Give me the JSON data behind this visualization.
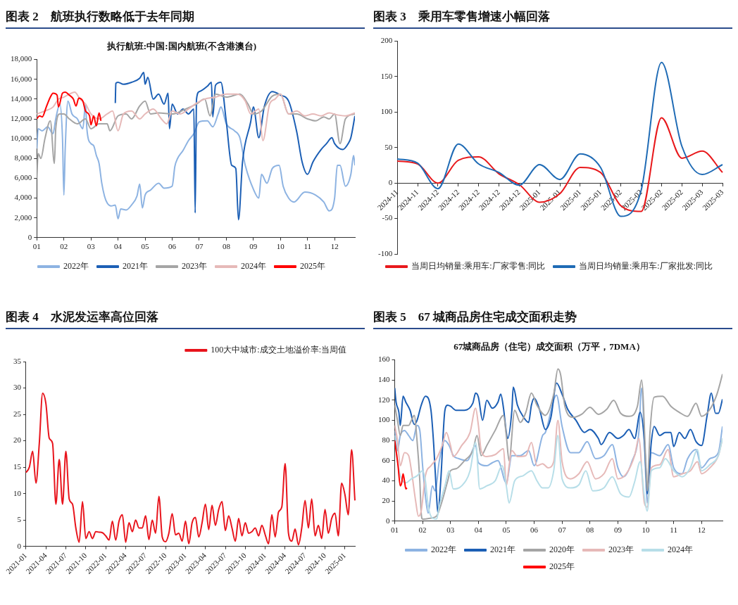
{
  "chart_data": [
    {
      "type": "line",
      "title": "图表 2　航班执行数略低于去年同期",
      "subtitle": "执行航班:中国:国内航班(不含港澳台)",
      "xlim": [
        1,
        12.75
      ],
      "xticks": [
        {
          "value": 1,
          "label": "01"
        },
        {
          "value": 2,
          "label": "02"
        },
        {
          "value": 3,
          "label": "03"
        },
        {
          "value": 4,
          "label": "04"
        },
        {
          "value": 5,
          "label": "05"
        },
        {
          "value": 6,
          "label": "06"
        },
        {
          "value": 7,
          "label": "07"
        },
        {
          "value": 8,
          "label": "08"
        },
        {
          "value": 9,
          "label": "09"
        },
        {
          "value": 10,
          "label": "10"
        },
        {
          "value": 11,
          "label": "11"
        },
        {
          "value": 12,
          "label": "12"
        }
      ],
      "ylim": [
        0,
        18000
      ],
      "yticks": [
        0,
        {
          "value": 2000,
          "label": "2,000"
        },
        {
          "value": 4000,
          "label": "4,000"
        },
        {
          "value": 6000,
          "label": "6,000"
        },
        {
          "value": 8000,
          "label": "8,000"
        },
        {
          "value": 10000,
          "label": "10,000"
        },
        {
          "value": 12000,
          "label": "12,000"
        },
        {
          "value": 14000,
          "label": "14,000"
        },
        {
          "value": 16000,
          "label": "16,000"
        },
        {
          "value": 18000,
          "label": "18,000"
        }
      ],
      "grid": false,
      "legend": "bottom",
      "marker": "none",
      "series": [
        {
          "name": "2022年",
          "color": "#8db3e2",
          "x": [
            1,
            1.05,
            1.2,
            1.4,
            1.6,
            1.7,
            1.85,
            1.95,
            2,
            2.05,
            2.15,
            2.3,
            2.5,
            2.7,
            2.8,
            2.85,
            3,
            3.1,
            3.2,
            3.3,
            3.4,
            3.5,
            3.6,
            3.75,
            3.9,
            4,
            4.1,
            4.3,
            4.5,
            4.7,
            4.8,
            4.9,
            5,
            5.2,
            5.5,
            5.7,
            6,
            6.1,
            6.2,
            6.4,
            6.6,
            6.8,
            7,
            7.3,
            7.5,
            7.7,
            7.8,
            8,
            8.3,
            8.5,
            8.7,
            9,
            9.2,
            9.3,
            9.5,
            9.7,
            9.95,
            10.1,
            10.3,
            10.5,
            10.9,
            11.3,
            11.6,
            11.8,
            12,
            12.1,
            12.2,
            12.4,
            12.6,
            12.7,
            12.75
          ],
          "values": [
            9000,
            11000,
            10800,
            11200,
            10500,
            12000,
            13500,
            10000,
            4300,
            9000,
            13800,
            12500,
            12000,
            11000,
            13500,
            11000,
            9500,
            9300,
            8300,
            7500,
            5500,
            4200,
            3500,
            3200,
            3300,
            1900,
            2900,
            2800,
            3300,
            4200,
            5400,
            3000,
            4300,
            4800,
            5500,
            5000,
            5200,
            7200,
            8000,
            8800,
            9800,
            10500,
            11700,
            11800,
            11200,
            12500,
            13200,
            11500,
            10800,
            10100,
            7300,
            4900,
            4000,
            6400,
            5500,
            7000,
            7300,
            5200,
            4000,
            3600,
            4600,
            4300,
            3600,
            2700,
            4000,
            7300,
            7300,
            5200,
            6400,
            8300,
            7300
          ]
        },
        {
          "name": "2021年",
          "color": "#1c5fb5",
          "x": [
            3.9,
            3.92,
            4,
            4.2,
            4.5,
            4.8,
            4.95,
            5,
            5.1,
            5.3,
            5.5,
            5.7,
            5.85,
            5.9,
            6,
            6.2,
            6.4,
            6.6,
            6.8,
            6.85,
            6.9,
            7,
            7.3,
            7.45,
            7.5,
            7.6,
            7.8,
            8,
            8.2,
            8.35,
            8.45,
            8.6,
            8.9,
            9,
            9.2,
            9.4,
            9.7,
            10,
            10.3,
            10.6,
            10.8,
            11,
            11.2,
            11.5,
            11.7,
            11.9,
            12,
            12.3,
            12.5,
            12.6,
            12.75
          ],
          "values": [
            13600,
            15600,
            15700,
            15500,
            15700,
            16100,
            16700,
            15500,
            16200,
            14000,
            14500,
            13500,
            14600,
            11000,
            13500,
            12500,
            13000,
            12500,
            13000,
            2500,
            14000,
            14750,
            15300,
            15700,
            12200,
            15400,
            15700,
            11700,
            7300,
            7000,
            1800,
            7700,
            11700,
            13200,
            10100,
            13200,
            14750,
            14400,
            13800,
            10700,
            7650,
            6400,
            7650,
            8900,
            9500,
            10100,
            9500,
            8900,
            9500,
            10100,
            12300
          ]
        },
        {
          "name": "2023年",
          "color": "#a5a5a5",
          "x": [
            1,
            1.05,
            1.15,
            1.3,
            1.5,
            1.65,
            1.7,
            1.85,
            2,
            2.2,
            2.5,
            2.8,
            3,
            3.3,
            3.6,
            3.7,
            4,
            4.3,
            4.5,
            4.8,
            5,
            5.2,
            5.5,
            6,
            6.5,
            6.9,
            7.2,
            7.4,
            7.6,
            8,
            8.5,
            8.8,
            9,
            9.3,
            9.7,
            10,
            10.3,
            10.6,
            11,
            11.3,
            11.6,
            11.8,
            12,
            12.2,
            12.4,
            12.75
          ],
          "values": [
            6000,
            8500,
            8000,
            10000,
            11800,
            7500,
            11000,
            12500,
            12500,
            12000,
            11500,
            12000,
            11000,
            11500,
            11500,
            10800,
            12300,
            12500,
            12000,
            13300,
            13800,
            12500,
            12600,
            12500,
            13000,
            13500,
            14000,
            12300,
            14500,
            14200,
            14500,
            13500,
            12500,
            12800,
            14300,
            14500,
            12500,
            12500,
            12000,
            11800,
            12200,
            12000,
            12500,
            9500,
            12000,
            12500
          ]
        },
        {
          "name": "2024年",
          "color": "#e6b9b8",
          "x": [
            1,
            1.3,
            1.6,
            1.8,
            2,
            2.2,
            2.4,
            2.6,
            2.8,
            3,
            3.3,
            3.6,
            3.8,
            4,
            4.2,
            4.5,
            4.8,
            5,
            5.3,
            5.6,
            5.8,
            6,
            6.3,
            6.6,
            6.9,
            7.2,
            7.6,
            8,
            8.4,
            8.7,
            8.9,
            9.2,
            9.35,
            9.6,
            9.8,
            10,
            10.3,
            10.6,
            10.9,
            11.2,
            11.5,
            11.8,
            12.1,
            12.4,
            12.75
          ],
          "values": [
            12500,
            12800,
            13200,
            14000,
            14200,
            14500,
            14700,
            14000,
            13500,
            12500,
            12000,
            12500,
            12800,
            10800,
            12500,
            12800,
            12000,
            12500,
            13000,
            12000,
            11500,
            12800,
            12500,
            13000,
            13600,
            14000,
            14200,
            14500,
            14500,
            13800,
            12500,
            13000,
            9800,
            13500,
            14000,
            14500,
            12500,
            12800,
            12300,
            12500,
            12300,
            12600,
            12400,
            12300,
            12600
          ]
        },
        {
          "name": "2025年",
          "color": "#ff0000",
          "x": [
            1,
            1.1,
            1.2,
            1.35,
            1.5,
            1.6,
            1.75,
            1.8,
            1.95,
            2.05,
            2.2,
            2.35,
            2.45,
            2.55,
            2.7,
            2.8,
            2.95,
            3,
            3.1,
            3.2,
            3.3,
            3.37
          ],
          "values": [
            12000,
            12300,
            12200,
            13200,
            14200,
            14600,
            14400,
            13200,
            14600,
            14700,
            14400,
            14000,
            13300,
            14100,
            13800,
            12800,
            12300,
            11400,
            12300,
            11300,
            12600,
            11800
          ]
        }
      ]
    },
    {
      "type": "line",
      "title": "图表 3　乘用车零售增速小幅回落",
      "categories": [
        "2024-11",
        "2024-11",
        "2024-12",
        "2024-12",
        "2024-12",
        "2024-12",
        "2024-12",
        "2025-01",
        "2025-01",
        "2025-01",
        "2025-01",
        "2025-02",
        "2025-02",
        "2025-02",
        "2025-02",
        "2025-03",
        "2025-03"
      ],
      "ylim": [
        -100,
        200
      ],
      "yticks": [
        -100,
        -50,
        0,
        50,
        100,
        150,
        200
      ],
      "grid": false,
      "legend": "bottom",
      "marker": "none",
      "series": [
        {
          "name": "当周日均销量:乘用车:厂家零售:同比",
          "color": "#e8191c",
          "values": [
            31,
            27,
            0,
            32,
            37,
            13,
            -2,
            -27,
            -15,
            22,
            15,
            -32,
            -40,
            92,
            35,
            45,
            15
          ]
        },
        {
          "name": "当周日均销量:乘用车:厂家批发:同比",
          "color": "#1f6bb5",
          "values": [
            34,
            28,
            -8,
            55,
            27,
            15,
            -3,
            26,
            5,
            41,
            22,
            -47,
            -10,
            170,
            52,
            12,
            26
          ]
        }
      ]
    },
    {
      "type": "line",
      "title": "图表 4　水泥发运率高位回落",
      "categories": [
        "2021-01",
        null,
        null,
        null,
        null,
        null,
        "2021-04",
        null,
        null,
        null,
        null,
        null,
        "2021-07",
        null,
        null,
        null,
        null,
        null,
        "2021-10",
        null,
        null,
        null,
        null,
        null,
        "2022-01",
        null,
        null,
        null,
        null,
        null,
        "2022-04",
        null,
        null,
        null,
        null,
        null,
        "2022-07",
        null,
        null,
        null,
        null,
        null,
        "2022-10",
        null,
        null,
        null,
        null,
        null,
        "2023-01",
        null,
        null,
        null,
        null,
        null,
        "2023-04",
        null,
        null,
        null,
        null,
        null,
        "2023-07",
        null,
        null,
        null,
        null,
        null,
        "2023-10",
        null,
        null,
        null,
        null,
        null,
        "2024-01",
        null,
        null,
        null,
        null,
        null,
        "2024-04",
        null,
        null,
        null,
        null,
        null,
        "2024-07",
        null,
        null,
        null,
        null,
        null,
        "2024-10",
        null,
        null,
        null,
        null,
        null,
        "2025-01",
        null,
        null,
        null
      ],
      "ylim": [
        0,
        35
      ],
      "yticks": [
        0,
        5,
        10,
        15,
        20,
        25,
        30,
        35
      ],
      "grid": false,
      "legend": "top right",
      "marker": "none",
      "series": [
        {
          "name": "100大中城市:成交土地溢价率:当周值",
          "color": "#e8141c",
          "values": [
            14,
            15,
            18,
            12,
            19.5,
            29,
            27,
            20.5,
            19.5,
            8,
            16.5,
            8,
            18,
            9,
            8,
            3.5,
            0.8,
            8.5,
            1.5,
            2.8,
            1.5,
            2.8,
            2.7,
            2.6,
            2,
            1.2,
            4.8,
            1.2,
            4.8,
            6,
            0.8,
            4.5,
            2.8,
            5,
            3.5,
            3.5,
            5.8,
            1.3,
            5,
            2.5,
            9.5,
            1.8,
            0.9,
            2.5,
            6.2,
            2.2,
            2.5,
            1,
            4.8,
            0.5,
            4.5,
            5.5,
            1.8,
            4.5,
            8,
            3.2,
            7.8,
            4,
            7,
            8.5,
            3,
            5.8,
            3.5,
            1,
            5.3,
            2,
            4.5,
            2.5,
            2.8,
            3.5,
            2,
            4,
            2.2,
            0.5,
            6,
            1.8,
            6.5,
            7.5,
            15.7,
            2.5,
            1,
            3.3,
            0.3,
            3.5,
            8.7,
            3.5,
            9,
            2,
            4,
            1.5,
            7,
            2.5,
            5.3,
            6.3,
            2,
            12,
            9.8,
            6,
            18.3,
            8.7
          ]
        }
      ]
    },
    {
      "type": "line",
      "title": "图表 5　67 城商品房住宅成交面积走势",
      "subtitle": "67城商品房（住宅）成交面积（万平，7DMA）",
      "xlim": [
        1,
        12.75
      ],
      "xticks": [
        {
          "value": 1,
          "label": "01"
        },
        {
          "value": 2,
          "label": "02"
        },
        {
          "value": 3,
          "label": "03"
        },
        {
          "value": 4,
          "label": "04"
        },
        {
          "value": 5,
          "label": "05"
        },
        {
          "value": 6,
          "label": "06"
        },
        {
          "value": 7,
          "label": "07"
        },
        {
          "value": 8,
          "label": "08"
        },
        {
          "value": 9,
          "label": "09"
        },
        {
          "value": 10,
          "label": "10"
        },
        {
          "value": 11,
          "label": "11"
        },
        {
          "value": 12,
          "label": "12"
        }
      ],
      "ylim": [
        0,
        160
      ],
      "yticks": [
        0,
        20,
        40,
        60,
        80,
        100,
        120,
        140,
        160
      ],
      "grid": false,
      "legend": "bottom",
      "marker": "none",
      "series": [
        {
          "name": "2022年",
          "color": "#8db3e2",
          "x": [
            1,
            1.1,
            1.2,
            1.35,
            1.5,
            1.65,
            1.8,
            1.9,
            2,
            2.1,
            2.2,
            2.35,
            2.45,
            2.6,
            2.8,
            2.95,
            3.1,
            3.3,
            3.6,
            3.9,
            4,
            4.3,
            4.5,
            4.7,
            5,
            5.2,
            5.5,
            5.8,
            6,
            6.3,
            6.4,
            6.8,
            7,
            7.3,
            7.6,
            7.9,
            8.2,
            8.5,
            8.8,
            9,
            9.2,
            9.5,
            9.75,
            9.85,
            10,
            10.05,
            10.2,
            10.5,
            10.8,
            11,
            11.3,
            11.5,
            11.8,
            12,
            12.3,
            12.6,
            12.75
          ],
          "values": [
            90,
            70,
            85,
            90,
            85,
            80,
            95,
            90,
            55,
            25,
            8,
            35,
            30,
            60,
            80,
            75,
            65,
            62,
            60,
            75,
            58,
            55,
            58,
            60,
            38,
            65,
            65,
            70,
            55,
            85,
            88,
            125,
            94,
            68,
            68,
            79,
            62,
            65,
            76,
            53,
            44,
            59,
            88,
            132,
            44,
            18,
            68,
            65,
            76,
            53,
            47,
            62,
            71,
            53,
            62,
            68,
            94
          ]
        },
        {
          "name": "2021年",
          "color": "#1c5fb5",
          "x": [
            1,
            1.05,
            1.15,
            1.2,
            1.3,
            1.4,
            1.55,
            1.7,
            1.8,
            1.95,
            2.1,
            2.3,
            2.4,
            2.5,
            2.55,
            2.65,
            2.8,
            2.9,
            3,
            3.2,
            3.5,
            3.8,
            3.9,
            4,
            4.15,
            4.3,
            4.5,
            4.7,
            4.8,
            4.9,
            5,
            5.05,
            5.2,
            5.25,
            5.4,
            5.6,
            5.8,
            5.9,
            6,
            6.2,
            6.4,
            6.6,
            6.8,
            7,
            7.2,
            7.5,
            7.8,
            8,
            8.3,
            8.4,
            8.7,
            9,
            9.2,
            9.4,
            9.6,
            9.8,
            9.95,
            10,
            10.05,
            10.2,
            10.3,
            10.5,
            10.7,
            10.9,
            11,
            11.2,
            11.4,
            11.6,
            11.8,
            12,
            12.2,
            12.35,
            12.5,
            12.6,
            12.75
          ],
          "values": [
            132,
            118,
            108,
            95,
            124,
            118,
            110,
            96,
            100,
            115,
            124,
            110,
            75,
            25,
            8,
            40,
            110,
            115,
            114,
            110,
            110,
            117,
            127,
            123,
            100,
            120,
            112,
            118,
            126,
            112,
            88,
            82,
            110,
            133,
            115,
            104,
            98,
            115,
            122,
            110,
            91,
            103,
            137,
            126,
            111,
            100,
            88,
            91,
            82,
            76,
            88,
            82,
            85,
            91,
            82,
            108,
            79,
            53,
            27,
            79,
            94,
            85,
            88,
            88,
            74,
            88,
            82,
            91,
            79,
            75,
            105,
            127,
            107,
            107,
            121
          ]
        },
        {
          "name": "2020年",
          "color": "#a5a5a5",
          "x": [
            1,
            1.1,
            1.2,
            1.3,
            1.5,
            1.6,
            1.7,
            1.8,
            1.9,
            1.95,
            2,
            2.3,
            2.5,
            2.7,
            2.9,
            3,
            3.2,
            3.5,
            3.8,
            3.95,
            4.1,
            4.3,
            4.6,
            4.9,
            5,
            5.1,
            5.3,
            5.5,
            5.7,
            5.9,
            6.1,
            6.4,
            6.7,
            6.85,
            6.95,
            7.1,
            7.4,
            7.7,
            8,
            8.3,
            8.6,
            8.85,
            9.1,
            9.4,
            9.7,
            9.85,
            10,
            10.05,
            10.15,
            10.3,
            10.6,
            10.9,
            11.2,
            11.5,
            11.8,
            12,
            12.3,
            12.55,
            12.75
          ],
          "values": [
            115,
            100,
            85,
            95,
            95,
            100,
            105,
            80,
            40,
            8,
            2,
            3,
            5,
            20,
            40,
            50,
            52,
            60,
            70,
            85,
            65,
            75,
            90,
            105,
            85,
            60,
            110,
            98,
            108,
            127,
            115,
            105,
            126,
            151,
            145,
            114,
            103,
            106,
            113,
            106,
            111,
            120,
            107,
            104,
            114,
            140,
            59,
            30,
            88,
            123,
            124,
            114,
            108,
            104,
            117,
            104,
            111,
            126,
            146
          ]
        },
        {
          "name": "2023年",
          "color": "#e6b9b8",
          "x": [
            1,
            1.1,
            1.2,
            1.35,
            1.5,
            1.6,
            1.75,
            1.85,
            1.95,
            2.1,
            2.3,
            2.5,
            2.7,
            2.85,
            3,
            3.1,
            3.4,
            3.7,
            3.9,
            4,
            4.1,
            4.3,
            4.6,
            4.9,
            5,
            5.1,
            5.2,
            5.4,
            5.7,
            5.9,
            6.1,
            6.3,
            6.5,
            6.7,
            6.85,
            7,
            7.3,
            7.6,
            7.9,
            8.2,
            8.5,
            8.8,
            9,
            9.3,
            9.6,
            9.75,
            9.95,
            10.05,
            10.2,
            10.5,
            10.8,
            11,
            11.3,
            11.6,
            11.85,
            12,
            12.3,
            12.6,
            12.75
          ],
          "values": [
            95,
            80,
            55,
            68,
            65,
            50,
            20,
            5,
            10,
            45,
            55,
            62,
            75,
            88,
            75,
            64,
            75,
            88,
            112,
            95,
            70,
            64,
            66,
            72,
            35,
            55,
            70,
            64,
            65,
            78,
            55,
            57,
            53,
            59,
            100,
            59,
            42,
            47,
            59,
            42,
            47,
            62,
            42,
            47,
            65,
            82,
            18,
            14,
            53,
            56,
            71,
            44,
            47,
            50,
            59,
            47,
            53,
            65,
            82
          ]
        },
        {
          "name": "2024年",
          "color": "#b7dee8",
          "x": [
            1,
            1.1,
            1.2,
            1.4,
            1.6,
            1.8,
            2,
            2.1,
            2.2,
            2.35,
            2.5,
            2.6,
            2.8,
            2.95,
            3.1,
            3.4,
            3.7,
            3.9,
            4.05,
            4.3,
            4.6,
            4.85,
            5,
            5.1,
            5.3,
            5.6,
            5.9,
            6.1,
            6.3,
            6.5,
            6.7,
            6.85,
            7,
            7.3,
            7.6,
            7.85,
            8.1,
            8.5,
            8.8,
            9.1,
            9.4,
            9.6,
            9.8,
            9.95,
            10.05,
            10.2,
            10.5,
            10.7,
            11,
            11.3,
            11.6,
            11.85,
            12,
            12.3,
            12.6,
            12.75
          ],
          "values": [
            85,
            60,
            45,
            38,
            42,
            45,
            50,
            40,
            15,
            3,
            2,
            15,
            35,
            50,
            32,
            35,
            50,
            78,
            32,
            35,
            40,
            55,
            35,
            18,
            40,
            45,
            50,
            40,
            33,
            33,
            50,
            85,
            42,
            33,
            36,
            50,
            30,
            33,
            44,
            27,
            24,
            39,
            59,
            24,
            10,
            50,
            53,
            62,
            50,
            44,
            53,
            71,
            50,
            56,
            65,
            82
          ]
        },
        {
          "name": "2025年",
          "color": "#ff0000",
          "x": [
            1,
            1.05,
            1.12,
            1.2,
            1.25,
            1.3,
            1.35,
            1.4,
            1.44
          ],
          "values": [
            80,
            70,
            55,
            35,
            38,
            47,
            40,
            32,
            33
          ]
        }
      ]
    }
  ]
}
